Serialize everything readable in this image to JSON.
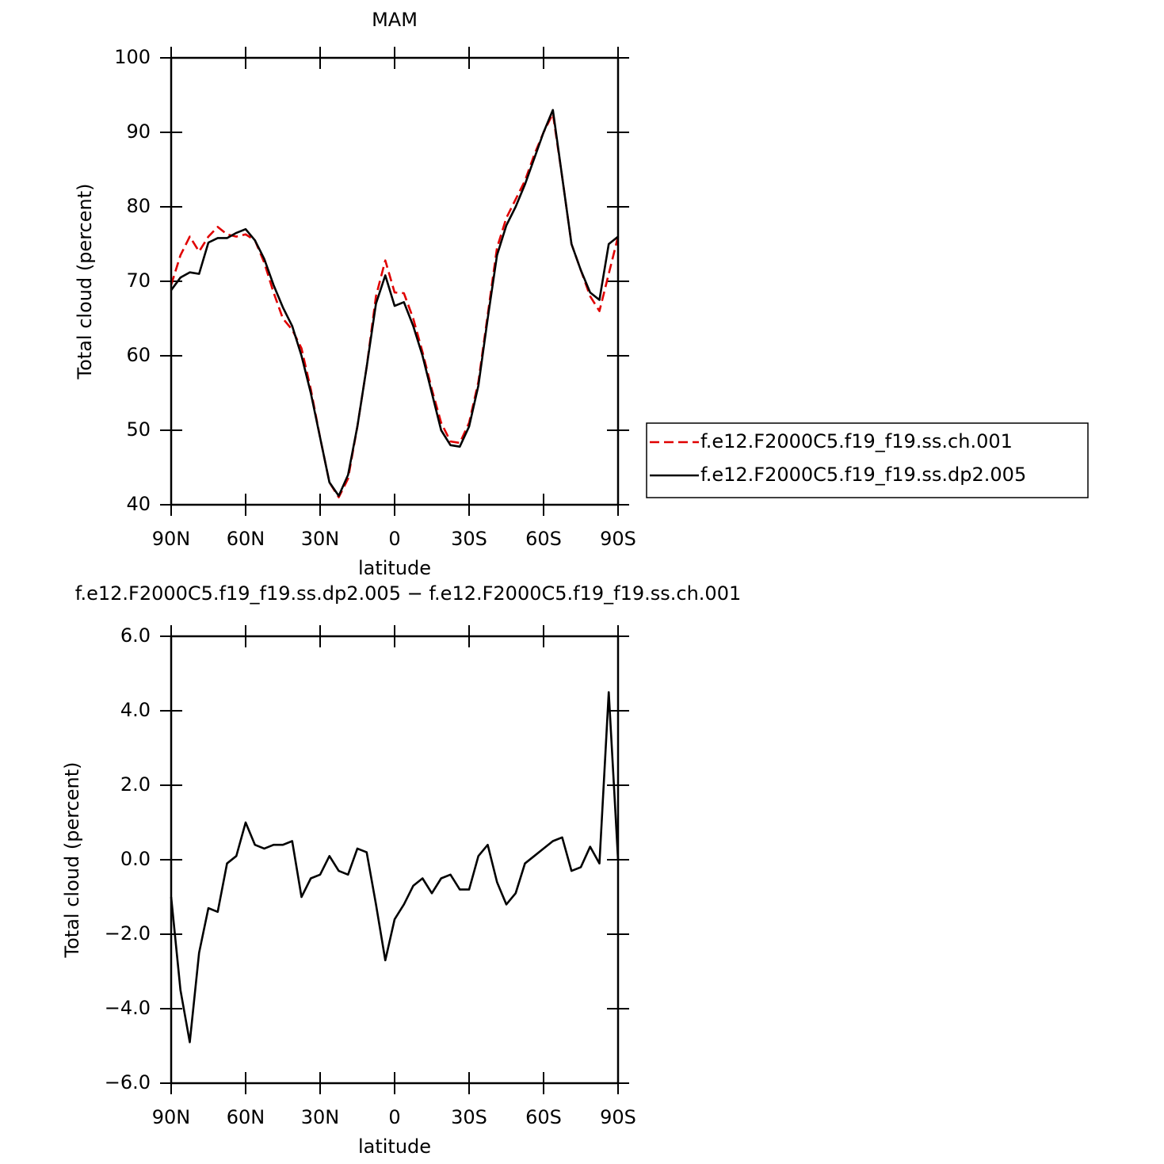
{
  "chart_data": [
    {
      "type": "line",
      "title": "MAM",
      "xlabel": "latitude",
      "ylabel": "Total cloud (percent)",
      "x": [
        90,
        86.25,
        82.5,
        78.75,
        75,
        71.25,
        67.5,
        63.75,
        60,
        56.25,
        52.5,
        48.75,
        45,
        41.25,
        37.5,
        33.75,
        30,
        26.25,
        22.5,
        18.75,
        15,
        11.25,
        7.5,
        3.75,
        0,
        -3.75,
        -7.5,
        -11.25,
        -15,
        -18.75,
        -22.5,
        -26.25,
        -30,
        -33.75,
        -37.5,
        -41.25,
        -45,
        -48.75,
        -52.5,
        -56.25,
        -60,
        -63.75,
        -67.5,
        -71.25,
        -75,
        -78.75,
        -82.5,
        -86.25,
        -90
      ],
      "series": [
        {
          "name": "f.e12.F2000C5.f19_f19.ss.ch.001",
          "color": "#e00000",
          "dash": true,
          "values": [
            69.5,
            73.5,
            76,
            74,
            76,
            77.3,
            76.3,
            76,
            76.3,
            75.5,
            72.5,
            68.5,
            65,
            63.5,
            61,
            55.5,
            49,
            43,
            41,
            43.5,
            50.5,
            58.5,
            68,
            72.8,
            68.5,
            68.4,
            65,
            60.5,
            55.5,
            51,
            48.5,
            48.3,
            51,
            56.5,
            65.5,
            74.5,
            78.5,
            81,
            83.5,
            87,
            90,
            92.5,
            84,
            75,
            71.5,
            68,
            66,
            71,
            76
          ]
        },
        {
          "name": "f.e12.F2000C5.f19_f19.ss.dp2.005",
          "color": "#000000",
          "dash": false,
          "values": [
            68.8,
            70.5,
            71.2,
            71,
            75.2,
            75.8,
            75.8,
            76.5,
            77,
            75.5,
            73,
            69.5,
            66.5,
            64,
            60,
            55,
            49,
            43,
            41.2,
            44,
            50.5,
            58.5,
            67,
            70.8,
            66.7,
            67.2,
            64,
            60,
            55,
            50,
            48,
            47.8,
            50.5,
            56,
            65,
            73.5,
            77.5,
            80,
            83,
            86.5,
            90,
            93,
            84,
            75,
            71.5,
            68.5,
            67.5,
            75,
            76
          ]
        }
      ],
      "xlim": [
        90,
        -90
      ],
      "xticks": [
        {
          "value": 90,
          "label": "90N"
        },
        {
          "value": 60,
          "label": "60N"
        },
        {
          "value": 30,
          "label": "30N"
        },
        0,
        {
          "value": -30,
          "label": "30S"
        },
        {
          "value": -60,
          "label": "60S"
        },
        {
          "value": -90,
          "label": "90S"
        }
      ],
      "ylim": [
        40,
        100
      ],
      "yticks": [
        40,
        50,
        60,
        70,
        80,
        90,
        100
      ],
      "legend": "right"
    },
    {
      "type": "line",
      "title": "f.e12.F2000C5.f19_f19.ss.dp2.005 − f.e12.F2000C5.f19_f19.ss.ch.001",
      "xlabel": "latitude",
      "ylabel": "Total cloud (percent)",
      "x": [
        90,
        86.25,
        82.5,
        78.75,
        75,
        71.25,
        67.5,
        63.75,
        60,
        56.25,
        52.5,
        48.75,
        45,
        41.25,
        37.5,
        33.75,
        30,
        26.25,
        22.5,
        18.75,
        15,
        11.25,
        7.5,
        3.75,
        0,
        -3.75,
        -7.5,
        -11.25,
        -15,
        -18.75,
        -22.5,
        -26.25,
        -30,
        -33.75,
        -37.5,
        -41.25,
        -45,
        -48.75,
        -52.5,
        -56.25,
        -60,
        -63.75,
        -67.5,
        -71.25,
        -75,
        -78.75,
        -82.5,
        -86.25,
        -90
      ],
      "series": [
        {
          "color": "#000000",
          "dash": false,
          "values": [
            -1.0,
            -3.5,
            -4.9,
            -2.5,
            -1.3,
            -1.4,
            -0.1,
            0.1,
            1.0,
            0.4,
            0.3,
            0.4,
            0.4,
            0.5,
            -1.0,
            -0.5,
            -0.4,
            0.1,
            -0.3,
            -0.4,
            0.3,
            0.2,
            -1.2,
            -2.7,
            -1.6,
            -1.2,
            -0.7,
            -0.5,
            -0.9,
            -0.5,
            -0.4,
            -0.8,
            -0.8,
            0.1,
            0.4,
            -0.6,
            -1.2,
            -0.9,
            -0.1,
            0.1,
            0.3,
            0.5,
            0.6,
            -0.3,
            -0.2,
            0.35,
            -0.1,
            4.5,
            0.0
          ]
        }
      ],
      "xlim": [
        90,
        -90
      ],
      "xticks": [
        {
          "value": 90,
          "label": "90N"
        },
        {
          "value": 60,
          "label": "60N"
        },
        {
          "value": 30,
          "label": "30N"
        },
        0,
        {
          "value": -30,
          "label": "30S"
        },
        {
          "value": -60,
          "label": "60S"
        },
        {
          "value": -90,
          "label": "90S"
        }
      ],
      "ylim": [
        -6,
        6
      ],
      "yticks": [
        {
          "value": -6,
          "label": "−6.0"
        },
        {
          "value": -4,
          "label": "−4.0"
        },
        {
          "value": -2,
          "label": "−2.0"
        },
        {
          "value": 0,
          "label": "0.0"
        },
        {
          "value": 2,
          "label": "2.0"
        },
        {
          "value": 4,
          "label": "4.0"
        },
        {
          "value": 6,
          "label": "6.0"
        }
      ]
    }
  ]
}
